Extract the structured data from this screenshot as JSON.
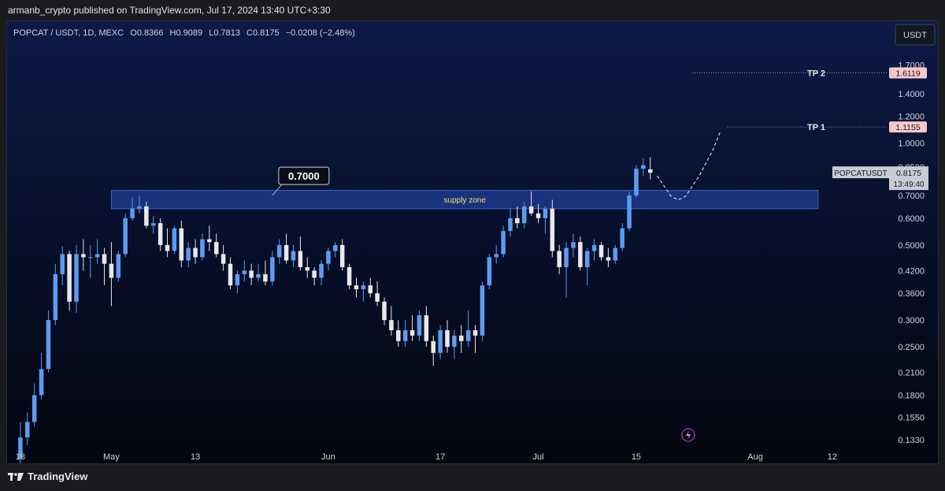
{
  "header": {
    "published": "armanb_crypto published on TradingView.com, Jul 17, 2024 13:40 UTC+3:30"
  },
  "legend": {
    "symbol": "POPCAT / USDT, 1D, MEXC",
    "open_label": "O",
    "open": "0.8366",
    "high_label": "H",
    "high": "0.9089",
    "low_label": "L",
    "low": "0.7813",
    "close_label": "C",
    "close": "0.8175",
    "change": "−0.0208 (−2.48%)"
  },
  "currency_button": "USDT",
  "footer": {
    "brand": "TradingView"
  },
  "colors": {
    "up": "#5b9cf0",
    "down": "#e8e8ea",
    "zone_fill": "#1b3a8a",
    "zone_border": "#3d63c7",
    "tp_badge": "#f8c8c8",
    "projection": "#d0d4dc"
  },
  "chart_data": {
    "type": "candlestick",
    "scale": "log",
    "ylim": [
      0.128,
      1.95
    ],
    "y_ticks": [
      "1.7000",
      "1.4000",
      "1.2000",
      "1.0000",
      "0.8500",
      "0.7000",
      "0.6000",
      "0.5000",
      "0.4200",
      "0.3600",
      "0.3000",
      "0.2500",
      "0.2100",
      "0.1800",
      "0.1550",
      "0.1330"
    ],
    "x_ticks": [
      {
        "label": "18",
        "day": 0
      },
      {
        "label": "May",
        "day": 13
      },
      {
        "label": "13",
        "day": 25
      },
      {
        "label": "Jun",
        "day": 44
      },
      {
        "label": "17",
        "day": 60
      },
      {
        "label": "Jul",
        "day": 74
      },
      {
        "label": "15",
        "day": 88
      },
      {
        "label": "Aug",
        "day": 105
      },
      {
        "label": "12",
        "day": 116
      }
    ],
    "xlim_days": [
      -1,
      123
    ],
    "candles": [
      [
        0.117,
        0.15,
        0.112,
        0.135
      ],
      [
        0.135,
        0.16,
        0.128,
        0.15
      ],
      [
        0.15,
        0.195,
        0.145,
        0.18
      ],
      [
        0.18,
        0.24,
        0.175,
        0.215
      ],
      [
        0.215,
        0.32,
        0.21,
        0.3
      ],
      [
        0.3,
        0.44,
        0.29,
        0.41
      ],
      [
        0.41,
        0.495,
        0.38,
        0.47
      ],
      [
        0.47,
        0.48,
        0.32,
        0.34
      ],
      [
        0.34,
        0.5,
        0.315,
        0.47
      ],
      [
        0.47,
        0.52,
        0.42,
        0.46
      ],
      [
        0.46,
        0.5,
        0.4,
        0.46
      ],
      [
        0.46,
        0.52,
        0.44,
        0.47
      ],
      [
        0.47,
        0.49,
        0.38,
        0.44
      ],
      [
        0.44,
        0.51,
        0.33,
        0.4
      ],
      [
        0.4,
        0.48,
        0.39,
        0.47
      ],
      [
        0.47,
        0.62,
        0.46,
        0.6
      ],
      [
        0.6,
        0.69,
        0.59,
        0.64
      ],
      [
        0.64,
        0.7,
        0.62,
        0.65
      ],
      [
        0.65,
        0.67,
        0.56,
        0.57
      ],
      [
        0.57,
        0.61,
        0.54,
        0.58
      ],
      [
        0.58,
        0.6,
        0.48,
        0.5
      ],
      [
        0.5,
        0.56,
        0.46,
        0.48
      ],
      [
        0.48,
        0.57,
        0.47,
        0.56
      ],
      [
        0.56,
        0.59,
        0.43,
        0.45
      ],
      [
        0.45,
        0.51,
        0.43,
        0.49
      ],
      [
        0.49,
        0.52,
        0.44,
        0.46
      ],
      [
        0.46,
        0.54,
        0.45,
        0.52
      ],
      [
        0.52,
        0.57,
        0.48,
        0.51
      ],
      [
        0.51,
        0.54,
        0.46,
        0.47
      ],
      [
        0.47,
        0.5,
        0.42,
        0.44
      ],
      [
        0.44,
        0.46,
        0.37,
        0.38
      ],
      [
        0.38,
        0.42,
        0.36,
        0.41
      ],
      [
        0.41,
        0.45,
        0.39,
        0.42
      ],
      [
        0.42,
        0.44,
        0.38,
        0.4
      ],
      [
        0.4,
        0.44,
        0.39,
        0.41
      ],
      [
        0.41,
        0.45,
        0.38,
        0.39
      ],
      [
        0.39,
        0.48,
        0.38,
        0.46
      ],
      [
        0.46,
        0.52,
        0.44,
        0.5
      ],
      [
        0.5,
        0.54,
        0.44,
        0.45
      ],
      [
        0.45,
        0.5,
        0.43,
        0.48
      ],
      [
        0.48,
        0.53,
        0.42,
        0.43
      ],
      [
        0.43,
        0.46,
        0.4,
        0.42
      ],
      [
        0.42,
        0.43,
        0.38,
        0.4
      ],
      [
        0.4,
        0.45,
        0.38,
        0.44
      ],
      [
        0.44,
        0.49,
        0.42,
        0.48
      ],
      [
        0.48,
        0.51,
        0.46,
        0.5
      ],
      [
        0.5,
        0.52,
        0.42,
        0.43
      ],
      [
        0.43,
        0.44,
        0.37,
        0.38
      ],
      [
        0.38,
        0.4,
        0.35,
        0.37
      ],
      [
        0.37,
        0.39,
        0.34,
        0.38
      ],
      [
        0.38,
        0.4,
        0.35,
        0.36
      ],
      [
        0.36,
        0.39,
        0.33,
        0.34
      ],
      [
        0.34,
        0.35,
        0.29,
        0.3
      ],
      [
        0.3,
        0.33,
        0.27,
        0.28
      ],
      [
        0.28,
        0.3,
        0.25,
        0.26
      ],
      [
        0.26,
        0.3,
        0.25,
        0.28
      ],
      [
        0.28,
        0.31,
        0.26,
        0.27
      ],
      [
        0.27,
        0.32,
        0.26,
        0.31
      ],
      [
        0.31,
        0.33,
        0.25,
        0.26
      ],
      [
        0.26,
        0.27,
        0.22,
        0.24
      ],
      [
        0.24,
        0.29,
        0.23,
        0.28
      ],
      [
        0.28,
        0.3,
        0.24,
        0.25
      ],
      [
        0.25,
        0.28,
        0.23,
        0.27
      ],
      [
        0.27,
        0.29,
        0.24,
        0.26
      ],
      [
        0.26,
        0.32,
        0.25,
        0.28
      ],
      [
        0.28,
        0.29,
        0.24,
        0.27
      ],
      [
        0.27,
        0.39,
        0.26,
        0.38
      ],
      [
        0.38,
        0.47,
        0.37,
        0.46
      ],
      [
        0.46,
        0.5,
        0.44,
        0.47
      ],
      [
        0.47,
        0.57,
        0.46,
        0.55
      ],
      [
        0.55,
        0.64,
        0.53,
        0.6
      ],
      [
        0.6,
        0.65,
        0.56,
        0.58
      ],
      [
        0.58,
        0.67,
        0.56,
        0.65
      ],
      [
        0.65,
        0.72,
        0.61,
        0.62
      ],
      [
        0.62,
        0.66,
        0.58,
        0.6
      ],
      [
        0.6,
        0.65,
        0.54,
        0.64
      ],
      [
        0.64,
        0.68,
        0.46,
        0.48
      ],
      [
        0.48,
        0.5,
        0.41,
        0.43
      ],
      [
        0.43,
        0.51,
        0.35,
        0.49
      ],
      [
        0.49,
        0.54,
        0.46,
        0.51
      ],
      [
        0.51,
        0.53,
        0.42,
        0.43
      ],
      [
        0.43,
        0.49,
        0.38,
        0.48
      ],
      [
        0.48,
        0.52,
        0.45,
        0.5
      ],
      [
        0.5,
        0.51,
        0.45,
        0.46
      ],
      [
        0.46,
        0.49,
        0.43,
        0.45
      ],
      [
        0.45,
        0.5,
        0.44,
        0.49
      ],
      [
        0.49,
        0.58,
        0.48,
        0.56
      ],
      [
        0.56,
        0.72,
        0.55,
        0.7
      ],
      [
        0.7,
        0.86,
        0.69,
        0.84
      ],
      [
        0.84,
        0.9,
        0.8,
        0.86
      ],
      [
        0.8366,
        0.9089,
        0.7813,
        0.8175
      ]
    ],
    "supply_zone": {
      "label": "supply zone",
      "top": 0.725,
      "bottom": 0.64,
      "start_day": 13,
      "end_day": 114
    },
    "annotation": {
      "label": "0.7000",
      "price": 0.7,
      "anchor_day": 36
    },
    "targets": [
      {
        "label": "TP 2",
        "price": 1.6119,
        "price_label": "1.6119"
      },
      {
        "label": "TP 1",
        "price": 1.1155,
        "price_label": "1.1155"
      }
    ],
    "projection": [
      [
        91,
        0.8
      ],
      [
        93,
        0.695
      ],
      [
        94,
        0.68
      ],
      [
        95,
        0.695
      ],
      [
        97,
        0.8
      ],
      [
        99,
        0.96
      ],
      [
        100,
        1.08
      ]
    ],
    "last_price": {
      "symbol": "POPCATUSDT",
      "price": "0.8175",
      "countdown": "13:49:40"
    }
  }
}
